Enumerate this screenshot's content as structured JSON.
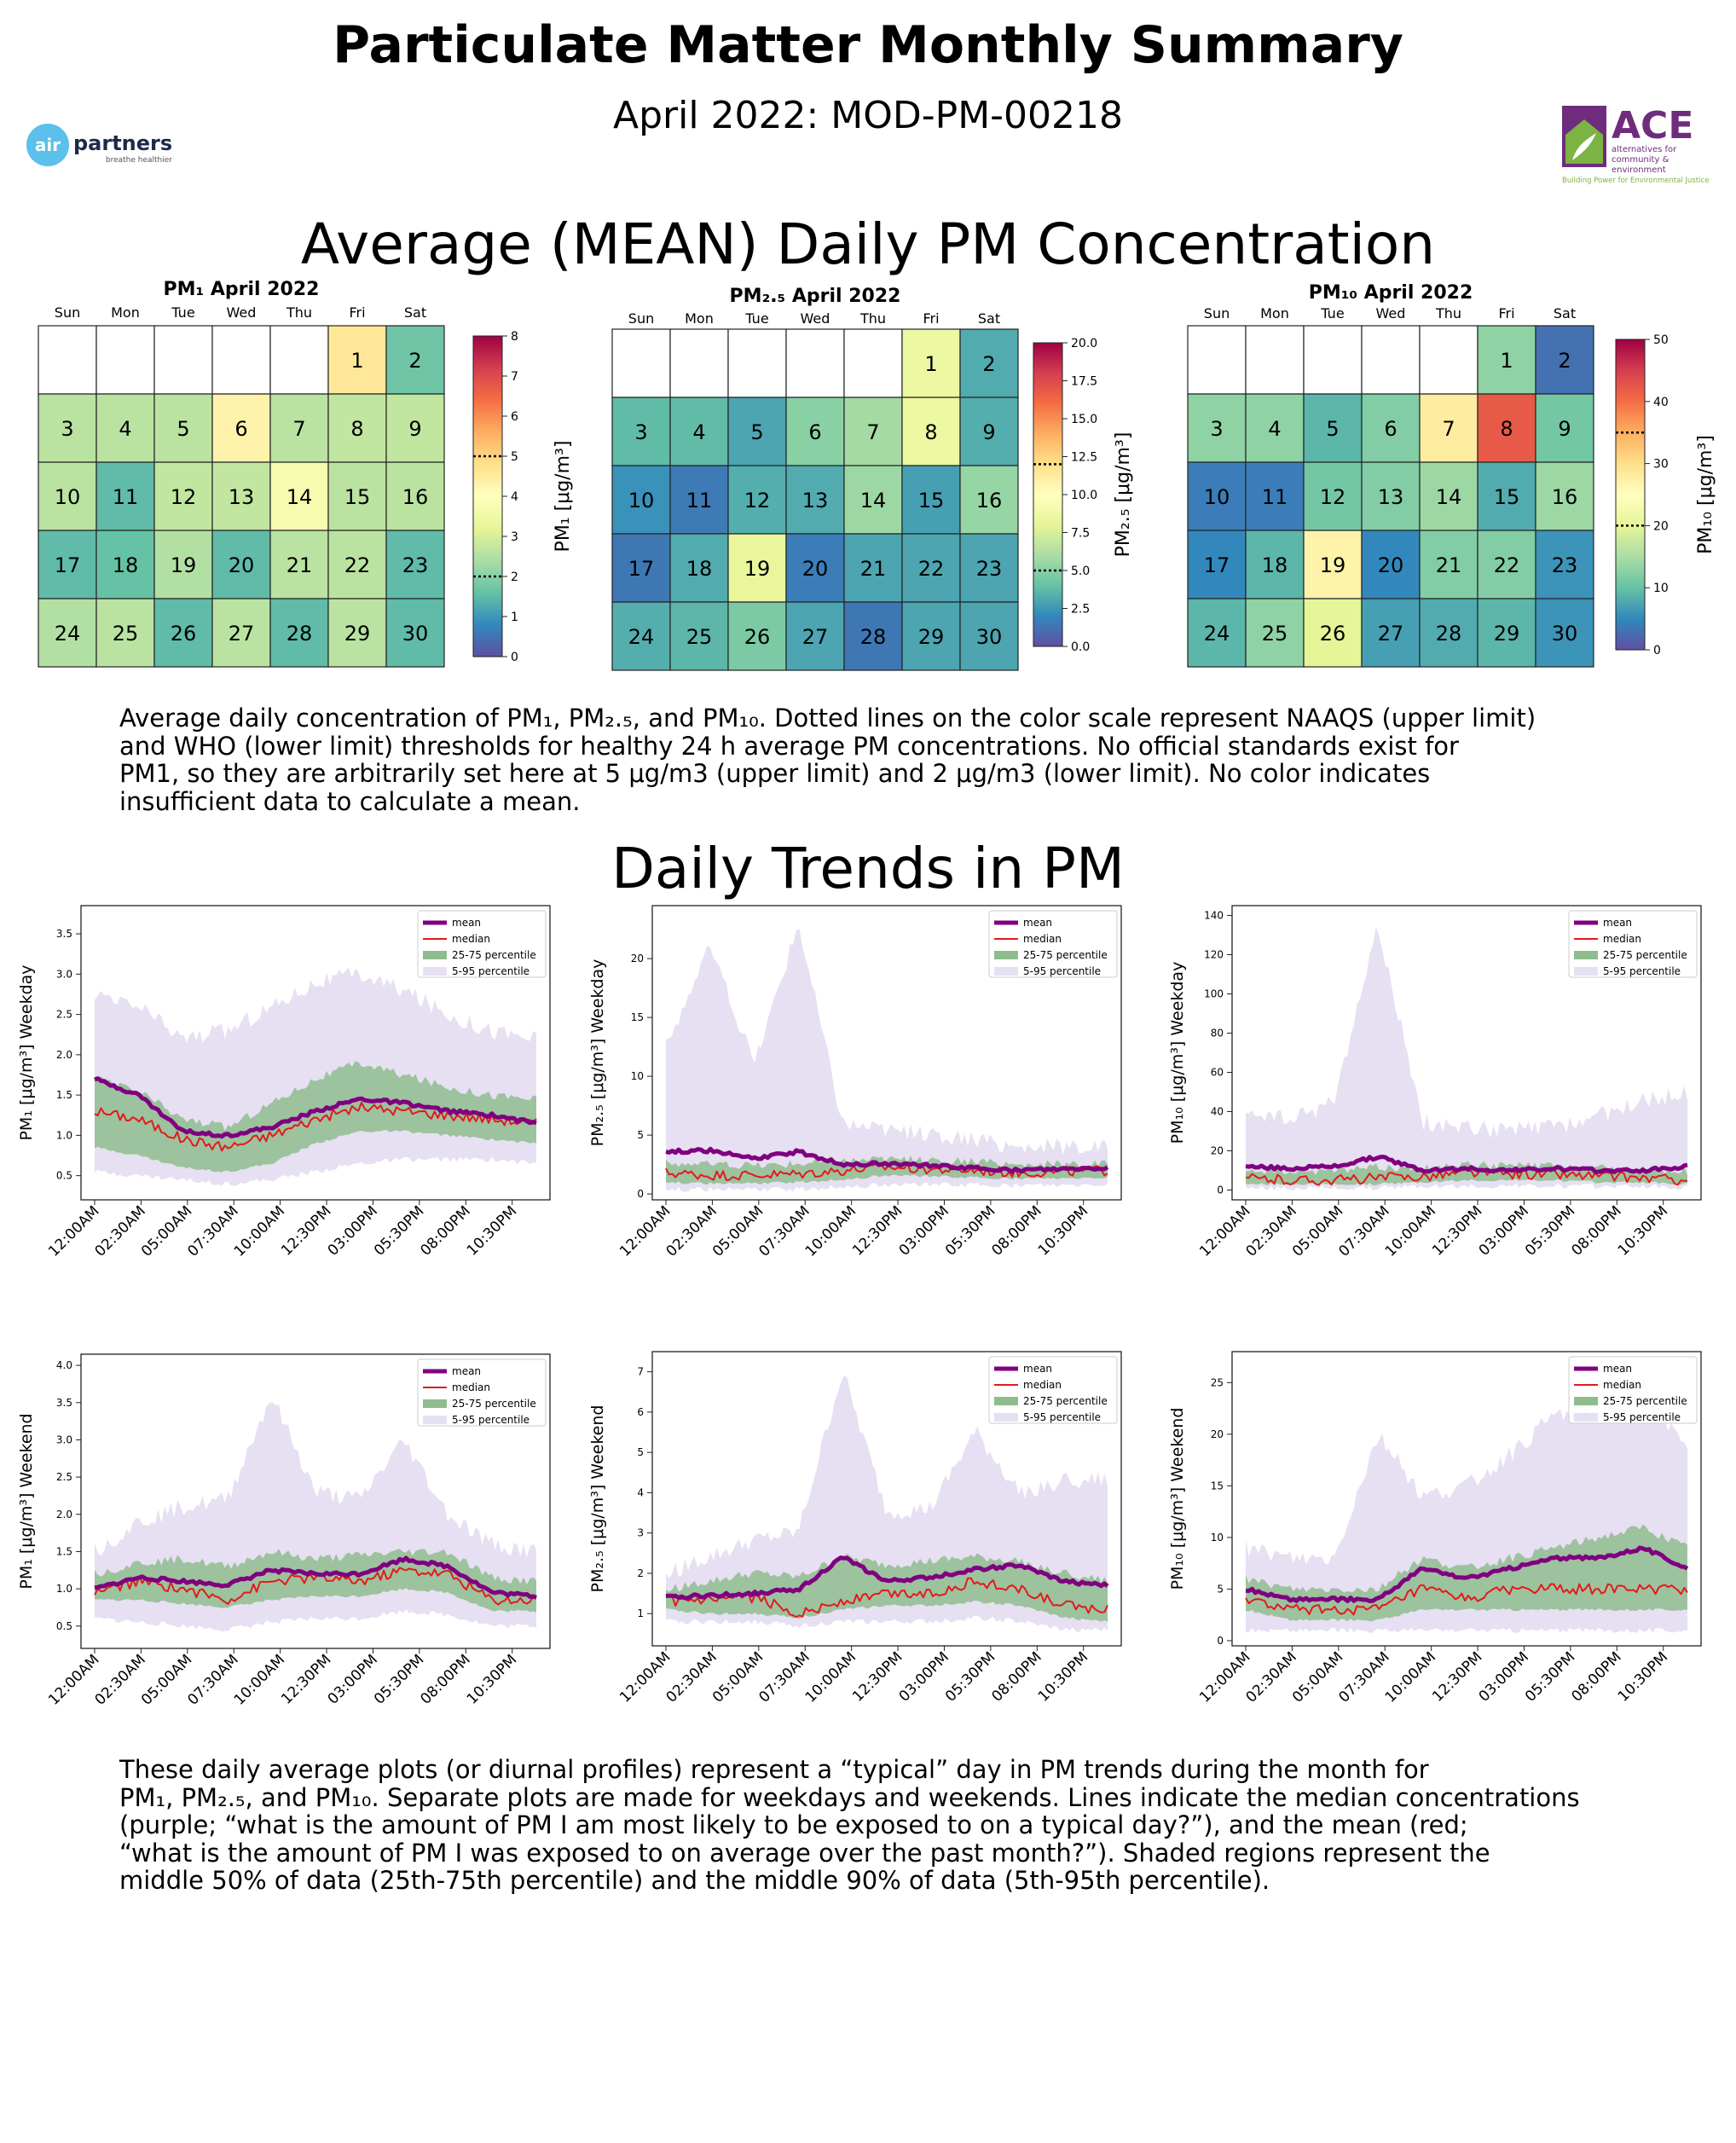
{
  "header": {
    "title": "Particulate Matter Monthly Summary",
    "subtitle": "April 2022: MOD-PM-00218"
  },
  "logos": {
    "left": {
      "text1": "air",
      "text2": "partners",
      "tagline": "breathe healthier"
    },
    "right": {
      "text": "ACE",
      "tagline_lines": [
        "alternatives for",
        "community &",
        "environment"
      ],
      "footer": "Building Power for Environmental Justice"
    }
  },
  "section1": {
    "title": "Average (MEAN) Daily PM Concentration",
    "caption_lines": [
      "Average daily concentration of PM₁, PM₂.₅, and PM₁₀. Dotted lines on the color scale represent NAAQS (upper limit)",
      "and WHO (lower limit) thresholds for healthy 24 h average PM concentrations. No official standards exist for",
      "PM1, so they are arbitrarily set here at 5 μg/m3 (upper limit) and 2 μg/m3 (lower limit). No color indicates",
      "insufficient data to calculate a mean."
    ]
  },
  "section2": {
    "title": "Daily Trends in PM",
    "caption_lines": [
      "These daily average plots (or diurnal profiles) represent a “typical” day in PM trends during the month for",
      "PM₁, PM₂.₅, and PM₁₀. Separate plots are made for weekdays and weekends. Lines indicate the median concentrations",
      "(purple; “what is the amount of PM I am most likely to be exposed to on a typical day?”), and the mean (red;",
      "“what is the amount of PM I was exposed to on average over the past month?”). Shaded regions represent the",
      "middle 50% of data (25th-75th percentile) and the middle 90% of data (5th-95th percentile)."
    ]
  },
  "calendar_weekdays": [
    "Sun",
    "Mon",
    "Tue",
    "Wed",
    "Thu",
    "Fri",
    "Sat"
  ],
  "calendars": [
    {
      "title": "PM₁ April 2022",
      "cbar_label": "PM₁ [μg/m³]",
      "vmin": 0,
      "vmax": 8,
      "ticks": [
        0,
        1,
        2,
        3,
        4,
        5,
        6,
        7,
        8
      ],
      "tick_labels": [
        "0",
        "1",
        "2",
        "3",
        "4",
        "5",
        "6",
        "7",
        "8"
      ],
      "thresholds": [
        2,
        5
      ],
      "days": [
        4.6,
        1.7,
        2.6,
        2.6,
        2.6,
        4.3,
        2.6,
        2.7,
        2.7,
        2.6,
        1.5,
        2.7,
        2.7,
        3.7,
        2.6,
        2.6,
        1.5,
        1.6,
        2.5,
        1.5,
        2.6,
        2.6,
        1.5,
        2.5,
        2.6,
        1.5,
        2.6,
        1.5,
        2.6,
        1.5
      ]
    },
    {
      "title": "PM₂.₅ April 2022",
      "cbar_label": "PM₂.₅ [μg/m³]",
      "vmin": 0,
      "vmax": 20,
      "ticks": [
        0,
        2.5,
        5,
        7.5,
        10,
        12.5,
        15,
        17.5,
        20
      ],
      "tick_labels": [
        "0.0",
        "2.5",
        "5.0",
        "7.5",
        "10.0",
        "12.5",
        "15.0",
        "17.5",
        "20.0"
      ],
      "thresholds": [
        5,
        12
      ],
      "days": [
        8.5,
        3.2,
        3.8,
        3.8,
        3.0,
        5.0,
        5.8,
        8.5,
        3.3,
        2.3,
        1.5,
        3.3,
        3.2,
        5.6,
        2.8,
        5.4,
        1.4,
        3.2,
        8.2,
        1.6,
        3.0,
        3.0,
        3.0,
        3.3,
        3.6,
        4.6,
        3.0,
        1.4,
        3.0,
        3.0
      ]
    },
    {
      "title": "PM₁₀ April 2022",
      "cbar_label": "PM₁₀ [μg/m³]",
      "vmin": 0,
      "vmax": 50,
      "ticks": [
        0,
        10,
        20,
        30,
        40,
        50
      ],
      "tick_labels": [
        "0",
        "10",
        "20",
        "30",
        "40",
        "50"
      ],
      "thresholds": [
        20,
        35
      ],
      "days": [
        13,
        3,
        13,
        13,
        9,
        12,
        28,
        42,
        11,
        4,
        4,
        11,
        12,
        14,
        8,
        14,
        5,
        9,
        27,
        5,
        12,
        12,
        6,
        9,
        13,
        20,
        7,
        8,
        9,
        6
      ]
    }
  ],
  "legend_labels": [
    "mean",
    "median",
    "25-75 percentile",
    "5-95 percentile"
  ],
  "xtick_labels": [
    "12:00AM",
    "02:30AM",
    "05:00AM",
    "07:30AM",
    "10:00AM",
    "12:30PM",
    "03:00PM",
    "05:30PM",
    "08:00PM",
    "10:30PM"
  ],
  "colors": {
    "mean": "#800080",
    "median": "#e31a1c",
    "iqr": "#8fbc8f",
    "p90": "#e6e0f2"
  },
  "chart_data": [
    {
      "type": "area",
      "ylabel": "PM₁ [μg/m³] Weekday",
      "ylim": [
        0.2,
        3.85
      ],
      "yticks": [
        0.5,
        1.0,
        1.5,
        2.0,
        2.5,
        3.0,
        3.5
      ],
      "ytick_labels": [
        "0.5",
        "1.0",
        "1.5",
        "2.0",
        "2.5",
        "3.0",
        "3.5"
      ],
      "x": [
        "12:00AM",
        "02:30AM",
        "05:00AM",
        "07:30AM",
        "10:00AM",
        "12:30PM",
        "03:00PM",
        "05:30PM",
        "08:00PM",
        "10:30PM",
        "11:50PM"
      ],
      "series": [
        {
          "name": "mean",
          "values": [
            1.7,
            1.5,
            1.05,
            1.0,
            1.1,
            1.3,
            1.45,
            1.4,
            1.3,
            1.25,
            1.15
          ]
        },
        {
          "name": "median",
          "values": [
            1.3,
            1.2,
            0.95,
            0.85,
            1.0,
            1.2,
            1.35,
            1.3,
            1.25,
            1.2,
            1.15
          ]
        },
        {
          "name": "25 percentile",
          "values": [
            0.85,
            0.75,
            0.6,
            0.55,
            0.65,
            0.9,
            1.05,
            1.05,
            1.0,
            0.95,
            0.9
          ]
        },
        {
          "name": "75 percentile",
          "values": [
            1.7,
            1.55,
            1.2,
            1.1,
            1.4,
            1.7,
            1.9,
            1.75,
            1.6,
            1.5,
            1.45
          ]
        },
        {
          "name": "5 percentile",
          "values": [
            0.55,
            0.5,
            0.45,
            0.4,
            0.45,
            0.55,
            0.65,
            0.7,
            0.7,
            0.7,
            0.65
          ]
        },
        {
          "name": "95 percentile",
          "values": [
            2.7,
            2.6,
            2.2,
            2.3,
            2.6,
            2.9,
            3.0,
            2.8,
            2.5,
            2.3,
            2.2
          ]
        }
      ]
    },
    {
      "type": "area",
      "ylabel": "PM₂.₅ [μg/m³] Weekday",
      "ylim": [
        -0.5,
        24.5
      ],
      "yticks": [
        0,
        5,
        10,
        15,
        20
      ],
      "ytick_labels": [
        "0",
        "5",
        "10",
        "15",
        "20"
      ],
      "x": [
        "12:00AM",
        "02:30AM",
        "05:00AM",
        "07:30AM",
        "10:00AM",
        "12:30PM",
        "03:00PM",
        "05:30PM",
        "08:00PM",
        "10:30PM",
        "11:50PM"
      ],
      "series": [
        {
          "name": "mean",
          "values": [
            3.6,
            3.7,
            3.0,
            3.6,
            2.5,
            2.6,
            2.4,
            2.2,
            2.0,
            2.1,
            2.2
          ]
        },
        {
          "name": "median",
          "values": [
            1.8,
            1.6,
            1.6,
            1.7,
            2.0,
            2.3,
            2.1,
            2.0,
            1.8,
            1.9,
            2.0
          ]
        },
        {
          "name": "25 percentile",
          "values": [
            1.0,
            0.9,
            0.9,
            1.0,
            1.2,
            1.6,
            1.5,
            1.4,
            1.3,
            1.3,
            1.4
          ]
        },
        {
          "name": "75 percentile",
          "values": [
            2.6,
            2.5,
            2.4,
            2.6,
            2.8,
            3.0,
            2.8,
            2.7,
            2.5,
            2.5,
            2.6
          ]
        },
        {
          "name": "5 percentile",
          "values": [
            0.4,
            0.4,
            0.4,
            0.4,
            0.6,
            0.8,
            0.8,
            0.8,
            0.7,
            0.7,
            0.8
          ]
        },
        {
          "name": "95 percentile",
          "values": [
            12.5,
            21,
            11,
            23,
            6,
            5.5,
            5,
            4.5,
            4,
            4,
            4
          ]
        }
      ]
    },
    {
      "type": "area",
      "ylabel": "PM₁₀ [μg/m³] Weekday",
      "ylim": [
        -5,
        145
      ],
      "yticks": [
        0,
        20,
        40,
        60,
        80,
        100,
        120,
        140
      ],
      "ytick_labels": [
        "0",
        "20",
        "40",
        "60",
        "80",
        "100",
        "120",
        "140"
      ],
      "x": [
        "12:00AM",
        "02:30AM",
        "05:00AM",
        "07:30AM",
        "10:00AM",
        "12:30PM",
        "03:00PM",
        "05:30PM",
        "08:00PM",
        "10:30PM",
        "11:50PM"
      ],
      "series": [
        {
          "name": "mean",
          "values": [
            12,
            11,
            12,
            17,
            10,
            11,
            10,
            11,
            10,
            10,
            12
          ]
        },
        {
          "name": "median",
          "values": [
            6,
            5,
            5,
            6,
            7,
            9,
            8,
            8,
            7,
            6,
            5
          ]
        },
        {
          "name": "25 percentile",
          "values": [
            3,
            3,
            3,
            3,
            4,
            5,
            5,
            5,
            4,
            4,
            3
          ]
        },
        {
          "name": "75 percentile",
          "values": [
            10,
            9,
            10,
            12,
            11,
            13,
            12,
            12,
            11,
            10,
            10
          ]
        },
        {
          "name": "5 percentile",
          "values": [
            1,
            1,
            1,
            1,
            2,
            2,
            2,
            2,
            2,
            2,
            1
          ]
        },
        {
          "name": "95 percentile",
          "values": [
            40,
            35,
            45,
            135,
            35,
            32,
            30,
            32,
            38,
            45,
            50
          ]
        }
      ]
    },
    {
      "type": "area",
      "ylabel": "PM₁ [μg/m³] Weekend",
      "ylim": [
        0.2,
        4.15
      ],
      "yticks": [
        0.5,
        1.0,
        1.5,
        2.0,
        2.5,
        3.0,
        3.5,
        4.0
      ],
      "ytick_labels": [
        "0.5",
        "1.0",
        "1.5",
        "2.0",
        "2.5",
        "3.0",
        "3.5",
        "4.0"
      ],
      "x": [
        "12:00AM",
        "02:30AM",
        "05:00AM",
        "07:30AM",
        "10:00AM",
        "12:30PM",
        "03:00PM",
        "05:30PM",
        "08:00PM",
        "10:30PM",
        "11:50PM"
      ],
      "series": [
        {
          "name": "mean",
          "values": [
            1.0,
            1.15,
            1.1,
            1.05,
            1.25,
            1.2,
            1.2,
            1.4,
            1.3,
            0.95,
            0.9
          ]
        },
        {
          "name": "median",
          "values": [
            0.95,
            1.1,
            1.0,
            0.85,
            1.1,
            1.15,
            1.1,
            1.25,
            1.2,
            0.85,
            0.85
          ]
        },
        {
          "name": "25 percentile",
          "values": [
            0.85,
            0.85,
            0.8,
            0.75,
            0.85,
            0.9,
            0.9,
            1.0,
            0.95,
            0.7,
            0.7
          ]
        },
        {
          "name": "75 percentile",
          "values": [
            1.2,
            1.35,
            1.4,
            1.3,
            1.5,
            1.4,
            1.45,
            1.5,
            1.5,
            1.15,
            1.1
          ]
        },
        {
          "name": "5 percentile",
          "values": [
            0.6,
            0.55,
            0.5,
            0.45,
            0.55,
            0.6,
            0.6,
            0.7,
            0.65,
            0.5,
            0.5
          ]
        },
        {
          "name": "95 percentile",
          "values": [
            1.5,
            1.9,
            2.1,
            2.2,
            3.6,
            2.3,
            2.2,
            3.0,
            2.0,
            1.6,
            1.5
          ]
        }
      ]
    },
    {
      "type": "area",
      "ylabel": "PM₂.₅ [μg/m³] Weekend",
      "ylim": [
        0.2,
        7.5
      ],
      "yticks": [
        1,
        2,
        3,
        4,
        5,
        6,
        7
      ],
      "ytick_labels": [
        "1",
        "2",
        "3",
        "4",
        "5",
        "6",
        "7"
      ],
      "x": [
        "12:00AM",
        "02:30AM",
        "05:00AM",
        "07:30AM",
        "10:00AM",
        "12:30PM",
        "03:00PM",
        "05:30PM",
        "08:00PM",
        "10:30PM",
        "11:50PM"
      ],
      "series": [
        {
          "name": "mean",
          "values": [
            1.4,
            1.45,
            1.5,
            1.6,
            2.4,
            1.8,
            1.9,
            2.1,
            2.2,
            1.8,
            1.7
          ]
        },
        {
          "name": "median",
          "values": [
            1.3,
            1.3,
            1.4,
            1.0,
            1.3,
            1.5,
            1.5,
            1.8,
            1.6,
            1.2,
            1.1
          ]
        },
        {
          "name": "25 percentile",
          "values": [
            1.1,
            1.0,
            1.0,
            0.9,
            1.1,
            1.2,
            1.2,
            1.3,
            1.2,
            0.9,
            0.8
          ]
        },
        {
          "name": "75 percentile",
          "values": [
            1.6,
            1.8,
            2.0,
            1.9,
            2.4,
            2.2,
            2.3,
            2.4,
            2.3,
            2.0,
            1.8
          ]
        },
        {
          "name": "5 percentile",
          "values": [
            0.8,
            0.8,
            0.8,
            0.7,
            0.8,
            0.8,
            0.8,
            0.9,
            0.8,
            0.6,
            0.6
          ]
        },
        {
          "name": "95 percentile",
          "values": [
            2.0,
            2.4,
            2.8,
            3.0,
            7.0,
            3.5,
            3.6,
            5.5,
            4.0,
            4.3,
            4.3
          ]
        }
      ]
    },
    {
      "type": "area",
      "ylabel": "PM₁₀ [μg/m³] Weekend",
      "ylim": [
        -0.5,
        28
      ],
      "yticks": [
        0,
        5,
        10,
        15,
        20,
        25
      ],
      "ytick_labels": [
        "0",
        "5",
        "10",
        "15",
        "20",
        "25"
      ],
      "x": [
        "12:00AM",
        "02:30AM",
        "05:00AM",
        "07:30AM",
        "10:00AM",
        "12:30PM",
        "03:00PM",
        "05:30PM",
        "08:00PM",
        "10:30PM",
        "11:50PM"
      ],
      "series": [
        {
          "name": "mean",
          "values": [
            5,
            4,
            4,
            4,
            7,
            6,
            7,
            8,
            8,
            9,
            7
          ]
        },
        {
          "name": "median",
          "values": [
            4,
            3,
            3,
            3,
            5,
            4,
            5,
            5,
            5,
            5,
            5
          ]
        },
        {
          "name": "25 percentile",
          "values": [
            3,
            2,
            2,
            2,
            3,
            3,
            3,
            3,
            3,
            3,
            3
          ]
        },
        {
          "name": "75 percentile",
          "values": [
            6,
            5,
            5,
            5,
            8,
            7,
            8,
            9,
            10,
            11,
            9
          ]
        },
        {
          "name": "5 percentile",
          "values": [
            1,
            1,
            1,
            1,
            1,
            1,
            1,
            1,
            1,
            1,
            1
          ]
        },
        {
          "name": "95 percentile",
          "values": [
            9,
            8,
            8,
            20,
            14,
            15,
            18,
            22,
            22,
            25,
            18
          ]
        }
      ]
    }
  ]
}
